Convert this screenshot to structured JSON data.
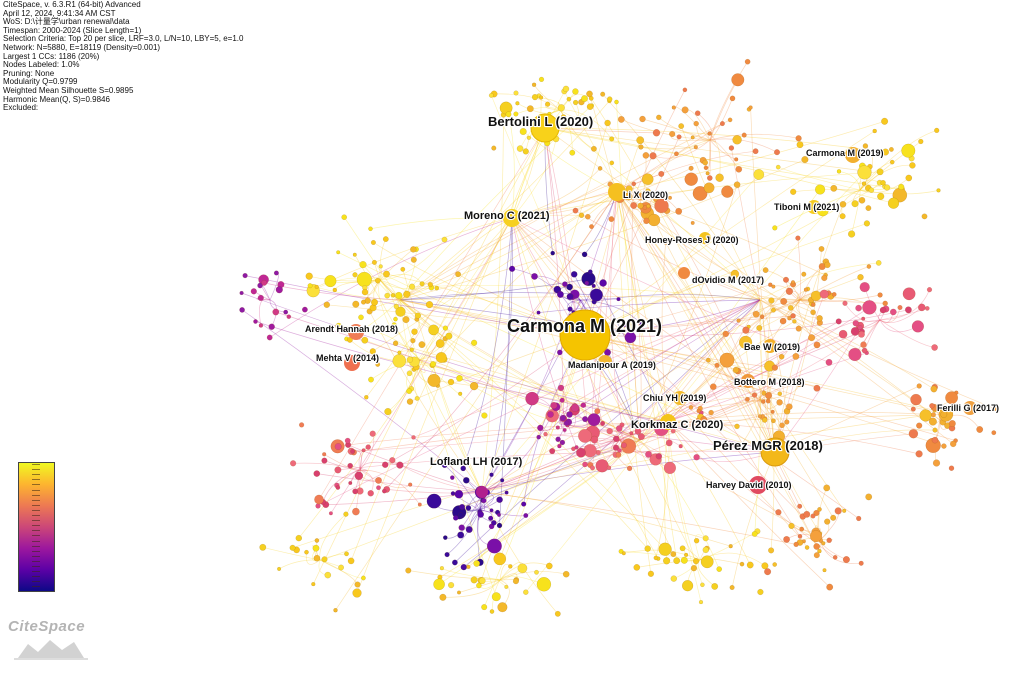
{
  "info": [
    "CiteSpace, v. 6.3.R1 (64-bit) Advanced",
    "April 12, 2024, 9:41:34 AM CST",
    "WoS: D:\\计量学\\urban renewal\\data",
    "Timespan: 2000-2024 (Slice Length=1)",
    "Selection Criteria: Top 20 per slice, LRF=3.0, L/N=10, LBY=5, e=1.0",
    "Network: N=5880, E=18119 (Density=0.001)",
    "Largest 1 CCs: 1186 (20%)",
    "Nodes Labeled: 1.0%",
    "Pruning: None",
    "Modularity Q=0.9799",
    "Weighted Mean Silhouette S=0.9895",
    "Harmonic Mean(Q, S)=0.9846",
    "Excluded:"
  ],
  "nodes": [
    {
      "label": "Carmona M (2021)",
      "size": "large",
      "color": "#f5c400"
    },
    {
      "label": "Bertolini L (2020)",
      "size": "medium",
      "color": "#f8d21a"
    },
    {
      "label": "Pérez MGR (2018)",
      "size": "medium",
      "color": "#f3b81a"
    },
    {
      "label": "Moreno C (2021)",
      "size": "small",
      "color": "#f6d020"
    },
    {
      "label": "Lofland LH (2017)",
      "size": "small",
      "color": "#b0208e"
    },
    {
      "label": "Korkmaz C (2020)",
      "size": "small",
      "color": "#f4c41a"
    },
    {
      "label": "Carmona M (2019)",
      "size": "small",
      "color": "#f2b030"
    },
    {
      "label": "Li X (2020)",
      "size": "small",
      "color": "#f5c020"
    },
    {
      "label": "Tiboni M (2021)",
      "size": "small",
      "color": "#f6cc22"
    },
    {
      "label": "Honey-Roses J (2020)",
      "size": "small",
      "color": "#f4c420"
    },
    {
      "label": "dOvidio M (2017)",
      "size": "small",
      "color": "#f08a40"
    },
    {
      "label": "Arendt Hannah (2018)",
      "size": "small",
      "color": "#f07c55"
    },
    {
      "label": "Mehta V (2014)",
      "size": "small",
      "color": "#ef7050"
    },
    {
      "label": "Madanipour A (2019)",
      "size": "small",
      "color": "#f3b830"
    },
    {
      "label": "Bae W (2019)",
      "size": "small",
      "color": "#f3b02a"
    },
    {
      "label": "Bottero M (2018)",
      "size": "small",
      "color": "#f0983a"
    },
    {
      "label": "Chiu YH (2019)",
      "size": "small",
      "color": "#f3bb2a"
    },
    {
      "label": "Ferilli G (2017)",
      "size": "small",
      "color": "#f0a040"
    },
    {
      "label": "Harvey David (2010)",
      "size": "small",
      "color": "#e04a60"
    }
  ],
  "legend": {
    "colors": [
      "#0d0887",
      "#5c01a6",
      "#9c179e",
      "#cc4778",
      "#ed7953",
      "#fdb42f",
      "#f0f921"
    ]
  },
  "brand": {
    "name": "CiteSpace"
  }
}
